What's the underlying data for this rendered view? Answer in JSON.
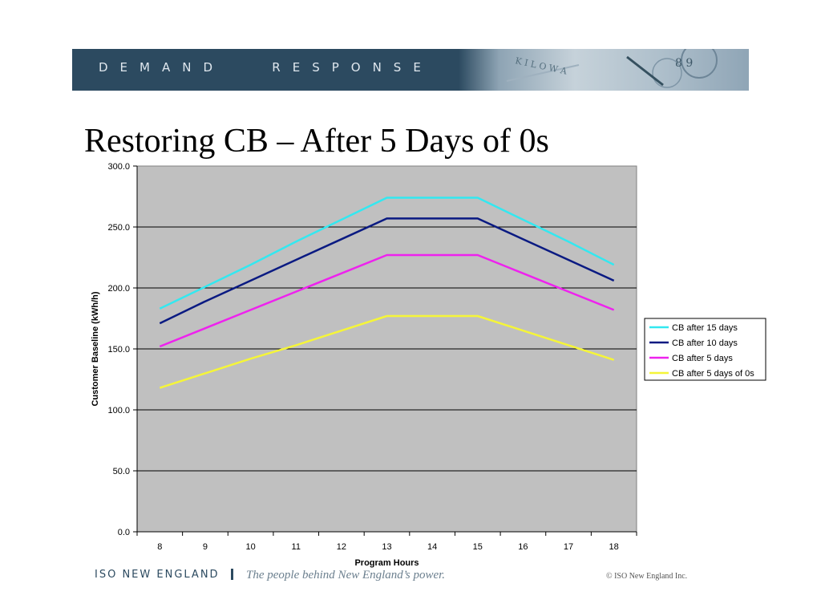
{
  "banner": {
    "label": "DEMAND   RESPONSE"
  },
  "slide": {
    "title": "Restoring CB – After 5 Days of 0s"
  },
  "footer": {
    "org": "ISO NEW ENGLAND",
    "tagline": "The people behind New England’s power.",
    "copyright": "© ISO New England Inc."
  },
  "chart_data": {
    "type": "line",
    "title": "",
    "xlabel": "Program Hours",
    "ylabel": "Customer Baseline (kWh/h)",
    "x": [
      8,
      9,
      10,
      11,
      12,
      13,
      14,
      15,
      16,
      17,
      18
    ],
    "ylim": [
      0,
      300
    ],
    "yticks": [
      "0.0",
      "50.0",
      "100.0",
      "150.0",
      "200.0",
      "250.0",
      "300.0"
    ],
    "grid": "horizontal",
    "legend_position": "right",
    "plot_background": "#c0c0c0",
    "series": [
      {
        "name": "CB after 15 days",
        "color": "#33e8f0",
        "values": [
          183,
          201,
          219,
          238,
          256,
          274,
          274,
          274,
          256,
          238,
          219
        ]
      },
      {
        "name": "CB after 10 days",
        "color": "#0a1a82",
        "values": [
          171,
          189,
          206,
          223,
          240,
          257,
          257,
          257,
          240,
          223,
          206
        ]
      },
      {
        "name": "CB after 5 days",
        "color": "#ee22ee",
        "values": [
          152,
          167,
          182,
          197,
          212,
          227,
          227,
          227,
          212,
          197,
          182
        ]
      },
      {
        "name": "CB after 5 days of 0s",
        "color": "#f5f538",
        "values": [
          118,
          130,
          142,
          153,
          165,
          177,
          177,
          177,
          165,
          153,
          141
        ]
      }
    ]
  }
}
